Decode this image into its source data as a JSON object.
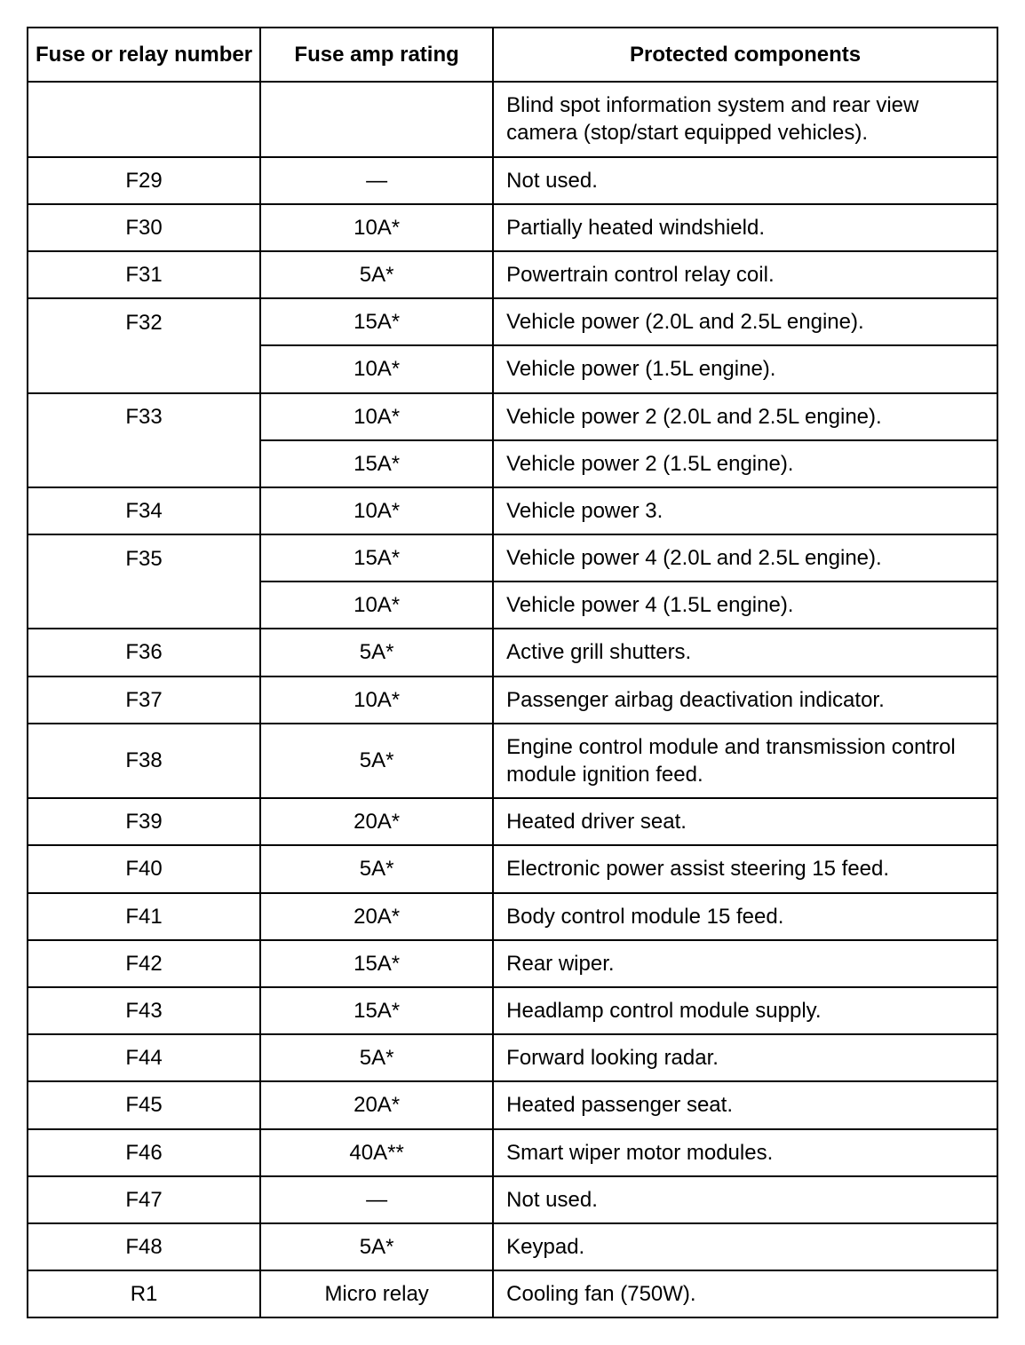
{
  "table": {
    "headers": [
      "Fuse or relay number",
      "Fuse amp rating",
      "Protected components"
    ],
    "rows": [
      {
        "fuse": "",
        "rating": "",
        "component": "Blind spot information system and rear view camera (stop/start equipped vehicles).",
        "span_bottom": false,
        "span_top": false
      },
      {
        "fuse": "F29",
        "rating": "—",
        "component": "Not used."
      },
      {
        "fuse": "F30",
        "rating": "10A*",
        "component": "Partially heated windshield."
      },
      {
        "fuse": "F31",
        "rating": "5A*",
        "component": "Powertrain control relay coil."
      },
      {
        "fuse": "F32",
        "rating": "15A*",
        "component": "Vehicle power (2.0L and 2.5L engine).",
        "span_bottom": true
      },
      {
        "fuse": "",
        "rating": "10A*",
        "component": "Vehicle power (1.5L engine).",
        "span_top": true
      },
      {
        "fuse": "F33",
        "rating": "10A*",
        "component": "Vehicle power 2 (2.0L and 2.5L engine).",
        "span_bottom": true
      },
      {
        "fuse": "",
        "rating": "15A*",
        "component": "Vehicle power 2 (1.5L engine).",
        "span_top": true
      },
      {
        "fuse": "F34",
        "rating": "10A*",
        "component": "Vehicle power 3."
      },
      {
        "fuse": "F35",
        "rating": "15A*",
        "component": "Vehicle power 4 (2.0L and 2.5L engine).",
        "span_bottom": true
      },
      {
        "fuse": "",
        "rating": "10A*",
        "component": "Vehicle power 4 (1.5L engine).",
        "span_top": true
      },
      {
        "fuse": "F36",
        "rating": "5A*",
        "component": "Active grill shutters."
      },
      {
        "fuse": "F37",
        "rating": "10A*",
        "component": "Passenger airbag deactivation indicator."
      },
      {
        "fuse": "F38",
        "rating": "5A*",
        "component": "Engine control module and transmission control module ignition feed."
      },
      {
        "fuse": "F39",
        "rating": "20A*",
        "component": "Heated driver seat."
      },
      {
        "fuse": "F40",
        "rating": "5A*",
        "component": "Electronic power assist steering 15 feed."
      },
      {
        "fuse": "F41",
        "rating": "20A*",
        "component": "Body control module 15 feed."
      },
      {
        "fuse": "F42",
        "rating": "15A*",
        "component": "Rear wiper."
      },
      {
        "fuse": "F43",
        "rating": "15A*",
        "component": "Headlamp control module supply."
      },
      {
        "fuse": "F44",
        "rating": "5A*",
        "component": "Forward looking radar."
      },
      {
        "fuse": "F45",
        "rating": "20A*",
        "component": "Heated passenger seat."
      },
      {
        "fuse": "F46",
        "rating": "40A**",
        "component": "Smart wiper motor modules."
      },
      {
        "fuse": "F47",
        "rating": "—",
        "component": "Not used."
      },
      {
        "fuse": "F48",
        "rating": "5A*",
        "component": "Keypad."
      },
      {
        "fuse": "R1",
        "rating": "Micro relay",
        "component": "Cooling fan (750W)."
      }
    ]
  }
}
